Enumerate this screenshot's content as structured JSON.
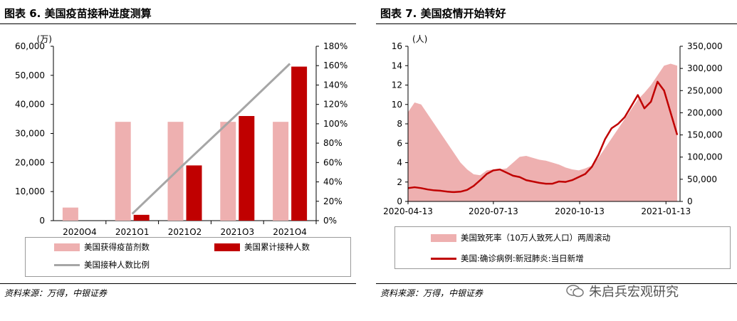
{
  "left": {
    "title": "图表 6. 美国疫苗接种进度测算",
    "source": "资料来源：万得，中银证券",
    "colors": {
      "received": "#eeb0b0",
      "cumulative": "#c00000",
      "ratio": "#a6a6a6"
    },
    "legend": [
      "美国获得疫苗剂数",
      "美国累计接种人数",
      "美国接种人数比例"
    ]
  },
  "right": {
    "title": "图表 7. 美国疫情开始转好",
    "source": "资料来源：万得，中银证券",
    "colors": {
      "death": "#eeb0b0",
      "cases": "#c00000"
    },
    "legend": [
      "美国致死率（10万人致死人口）两周滚动",
      "美国:确诊病例:新冠肺炎:当日新增"
    ]
  },
  "watermark": "朱启兵宏观研究",
  "chart_data": [
    {
      "type": "bar",
      "title": "图表 6. 美国疫苗接种进度测算",
      "unit_left": "(万)",
      "categories": [
        "2020Q4",
        "2021Q1",
        "2021Q2",
        "2021Q3",
        "2021Q4"
      ],
      "y_left_ticks": [
        "0",
        "10,000",
        "20,000",
        "30,000",
        "40,000",
        "50,000",
        "60,000"
      ],
      "y_right_ticks": [
        "0%",
        "20%",
        "40%",
        "60%",
        "80%",
        "100%",
        "120%",
        "140%",
        "160%",
        "180%"
      ],
      "ylim_left": [
        0,
        60000
      ],
      "ylim_right": [
        0,
        1.8
      ],
      "series": [
        {
          "name": "美国获得疫苗剂数",
          "kind": "bar",
          "axis": "left",
          "values": [
            4500,
            34000,
            34000,
            34000,
            34000
          ]
        },
        {
          "name": "美国累计接种人数",
          "kind": "bar",
          "axis": "left",
          "values": [
            0,
            2000,
            19000,
            36000,
            53000
          ]
        },
        {
          "name": "美国接种人数比例",
          "kind": "line",
          "axis": "right",
          "values": [
            null,
            0.07,
            0.59,
            1.1,
            1.62
          ]
        }
      ],
      "legend_position": "bottom"
    },
    {
      "type": "area",
      "title": "图表 7. 美国疫情开始转好",
      "unit_left": "(人)",
      "x_ticks": [
        "2020-04-13",
        "2020-07-13",
        "2020-10-13",
        "2021-01-13"
      ],
      "y_left_ticks": [
        "0",
        "2",
        "4",
        "6",
        "8",
        "10",
        "12",
        "14",
        "16"
      ],
      "y_right_ticks": [
        "0",
        "50,000",
        "100,000",
        "150,000",
        "200,000",
        "250,000",
        "300,000",
        "350,000"
      ],
      "ylim_left": [
        0,
        16
      ],
      "ylim_right": [
        0,
        350000
      ],
      "series": [
        {
          "name": "美国致死率（10万人致死人口）两周滚动",
          "kind": "area",
          "axis": "left",
          "x": [
            "2020-04-13",
            "2020-04-20",
            "2020-04-27",
            "2020-05-04",
            "2020-05-11",
            "2020-05-18",
            "2020-05-25",
            "2020-06-01",
            "2020-06-08",
            "2020-06-15",
            "2020-06-22",
            "2020-06-29",
            "2020-07-06",
            "2020-07-13",
            "2020-07-20",
            "2020-07-27",
            "2020-08-03",
            "2020-08-10",
            "2020-08-17",
            "2020-08-24",
            "2020-08-31",
            "2020-09-07",
            "2020-09-14",
            "2020-09-21",
            "2020-09-28",
            "2020-10-05",
            "2020-10-12",
            "2020-10-19",
            "2020-10-26",
            "2020-11-02",
            "2020-11-09",
            "2020-11-16",
            "2020-11-23",
            "2020-11-30",
            "2020-12-07",
            "2020-12-14",
            "2020-12-21",
            "2020-12-28",
            "2021-01-04",
            "2021-01-11",
            "2021-01-18",
            "2021-01-25"
          ],
          "values": [
            9.2,
            10.2,
            10.0,
            9.0,
            8.0,
            7.0,
            6.0,
            5.0,
            4.0,
            3.3,
            2.8,
            2.7,
            3.2,
            3.3,
            3.3,
            3.4,
            4.0,
            4.6,
            4.7,
            4.5,
            4.3,
            4.2,
            4.0,
            3.8,
            3.5,
            3.3,
            3.2,
            3.4,
            3.7,
            4.5,
            5.5,
            6.5,
            7.5,
            8.5,
            9.5,
            10.5,
            11.2,
            12.0,
            13.0,
            14.0,
            14.2,
            14.0
          ]
        },
        {
          "name": "美国:确诊病例:新冠肺炎:当日新增",
          "kind": "line",
          "axis": "right",
          "x": [
            "2020-04-13",
            "2020-04-20",
            "2020-04-27",
            "2020-05-04",
            "2020-05-11",
            "2020-05-18",
            "2020-05-25",
            "2020-06-01",
            "2020-06-08",
            "2020-06-15",
            "2020-06-22",
            "2020-06-29",
            "2020-07-06",
            "2020-07-13",
            "2020-07-20",
            "2020-07-27",
            "2020-08-03",
            "2020-08-10",
            "2020-08-17",
            "2020-08-24",
            "2020-08-31",
            "2020-09-07",
            "2020-09-14",
            "2020-09-21",
            "2020-09-28",
            "2020-10-05",
            "2020-10-12",
            "2020-10-19",
            "2020-10-26",
            "2020-11-02",
            "2020-11-09",
            "2020-11-16",
            "2020-11-23",
            "2020-11-30",
            "2020-12-07",
            "2020-12-14",
            "2020-12-21",
            "2020-12-28",
            "2021-01-04",
            "2021-01-11",
            "2021-01-18",
            "2021-01-25"
          ],
          "values": [
            30000,
            32000,
            30000,
            27000,
            25000,
            24000,
            22000,
            21000,
            22000,
            26000,
            35000,
            48000,
            62000,
            70000,
            72000,
            65000,
            58000,
            55000,
            48000,
            45000,
            42000,
            40000,
            40000,
            45000,
            44000,
            48000,
            55000,
            62000,
            78000,
            105000,
            140000,
            165000,
            175000,
            190000,
            215000,
            240000,
            210000,
            225000,
            270000,
            250000,
            200000,
            150000
          ]
        }
      ],
      "legend_position": "bottom"
    }
  ]
}
